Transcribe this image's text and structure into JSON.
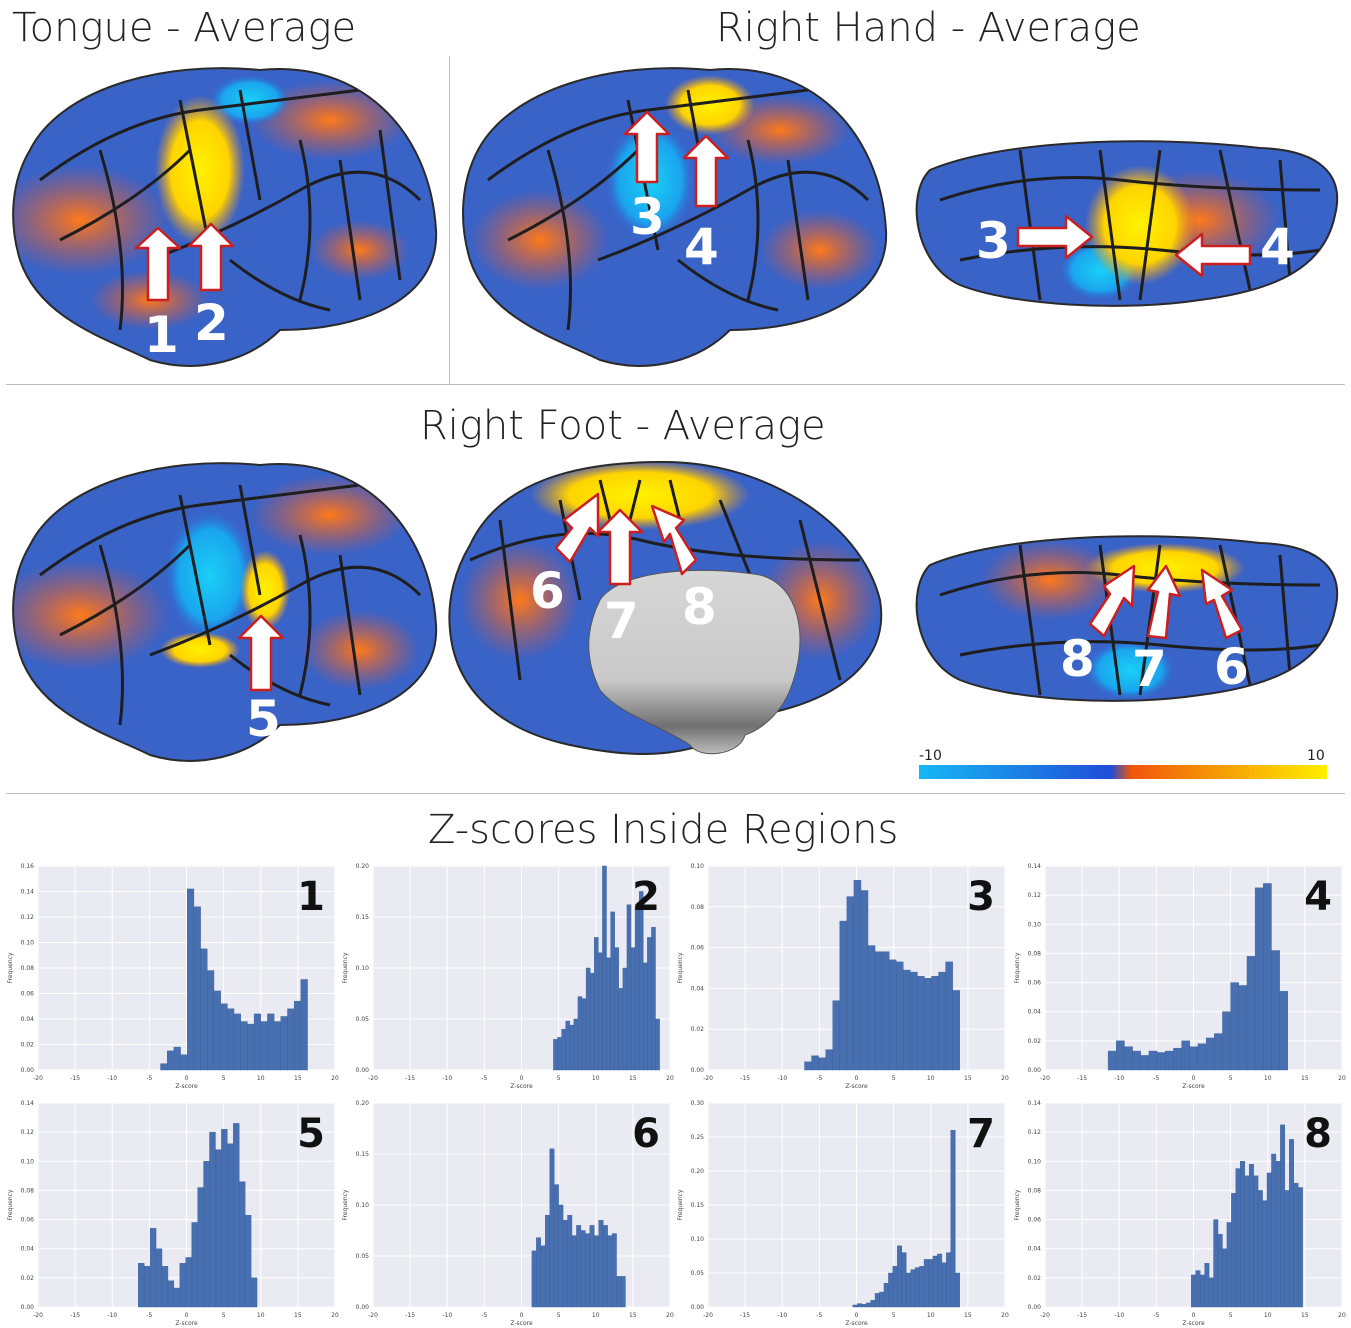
{
  "titles": {
    "tongue": "Tongue - Average",
    "right_hand": "Right Hand - Average",
    "right_foot": "Right Foot - Average",
    "zscores": "Z-scores Inside Regions"
  },
  "region_labels": [
    "1",
    "2",
    "3",
    "4",
    "5",
    "6",
    "7",
    "8"
  ],
  "colorbar": {
    "min_label": "-10",
    "max_label": "10",
    "stops": [
      "#16b8f5",
      "#1f4ed8",
      "#f0550a",
      "#ffef00"
    ]
  },
  "colors": {
    "bar": "#4870b0",
    "plot_bg": "#eaeaf2",
    "brain_blue": "#3a63c8",
    "brain_orange": "#e8672a",
    "activation_yellow": "#fff200",
    "arrow_fill": "#ffffff",
    "arrow_stroke": "#cc1f1f"
  },
  "chart_data": [
    {
      "type": "bar",
      "panel": "1",
      "xlabel": "Z-score",
      "ylabel": "Frequency",
      "xlim": [
        -20,
        20
      ],
      "ylim": [
        0,
        0.16
      ],
      "xticks": [
        -20,
        -15,
        -10,
        -5,
        0,
        5,
        10,
        15,
        20
      ],
      "yticks": [
        0.0,
        0.02,
        0.04,
        0.06,
        0.08,
        0.1,
        0.12,
        0.14,
        0.16
      ],
      "bin_start": -3.5,
      "bin_width": 0.9,
      "values": [
        0.005,
        0.015,
        0.018,
        0.012,
        0.142,
        0.128,
        0.095,
        0.078,
        0.062,
        0.052,
        0.048,
        0.044,
        0.038,
        0.036,
        0.044,
        0.038,
        0.044,
        0.038,
        0.042,
        0.048,
        0.054,
        0.071
      ]
    },
    {
      "type": "bar",
      "panel": "2",
      "xlabel": "Z-score",
      "ylabel": "Frequency",
      "xlim": [
        -20,
        20
      ],
      "ylim": [
        0,
        0.2
      ],
      "xticks": [
        -20,
        -15,
        -10,
        -5,
        0,
        5,
        10,
        15,
        20
      ],
      "yticks": [
        0.0,
        0.05,
        0.1,
        0.15,
        0.2
      ],
      "bin_start": 4.3,
      "bin_width": 0.55,
      "values": [
        0.03,
        0.032,
        0.04,
        0.048,
        0.044,
        0.05,
        0.072,
        0.07,
        0.1,
        0.095,
        0.13,
        0.115,
        0.2,
        0.11,
        0.155,
        0.12,
        0.08,
        0.1,
        0.162,
        0.12,
        0.16,
        0.175,
        0.105,
        0.13,
        0.14,
        0.05
      ]
    },
    {
      "type": "bar",
      "panel": "3",
      "xlabel": "Z-score",
      "ylabel": "Frequency",
      "xlim": [
        -20,
        20
      ],
      "ylim": [
        0,
        0.1
      ],
      "xticks": [
        -20,
        -15,
        -10,
        -5,
        0,
        5,
        10,
        15,
        20
      ],
      "yticks": [
        0.0,
        0.02,
        0.04,
        0.06,
        0.08,
        0.1
      ],
      "bin_start": -7,
      "bin_width": 0.95,
      "values": [
        0.004,
        0.007,
        0.006,
        0.01,
        0.034,
        0.073,
        0.085,
        0.093,
        0.088,
        0.061,
        0.058,
        0.058,
        0.054,
        0.053,
        0.049,
        0.048,
        0.046,
        0.045,
        0.046,
        0.048,
        0.053,
        0.039
      ]
    },
    {
      "type": "bar",
      "panel": "4",
      "xlabel": "Z-score",
      "ylabel": "Frequency",
      "xlim": [
        -20,
        20
      ],
      "ylim": [
        0,
        0.14
      ],
      "xticks": [
        -20,
        -15,
        -10,
        -5,
        0,
        5,
        10,
        15,
        20
      ],
      "yticks": [
        0.0,
        0.02,
        0.04,
        0.06,
        0.08,
        0.1,
        0.12,
        0.14
      ],
      "bin_start": -11.5,
      "bin_width": 1.1,
      "values": [
        0.013,
        0.02,
        0.016,
        0.013,
        0.01,
        0.013,
        0.012,
        0.013,
        0.015,
        0.02,
        0.016,
        0.018,
        0.022,
        0.025,
        0.04,
        0.06,
        0.058,
        0.078,
        0.125,
        0.128,
        0.082,
        0.054
      ]
    },
    {
      "type": "bar",
      "panel": "5",
      "xlabel": "Z-score",
      "ylabel": "Frequency",
      "xlim": [
        -20,
        20
      ],
      "ylim": [
        0,
        0.14
      ],
      "xticks": [
        -20,
        -15,
        -10,
        -5,
        0,
        5,
        10,
        15,
        20
      ],
      "yticks": [
        0.0,
        0.02,
        0.04,
        0.06,
        0.08,
        0.1,
        0.12,
        0.14
      ],
      "bin_start": -6.5,
      "bin_width": 0.8,
      "values": [
        0.03,
        0.028,
        0.054,
        0.04,
        0.028,
        0.018,
        0.013,
        0.03,
        0.034,
        0.058,
        0.082,
        0.1,
        0.12,
        0.108,
        0.122,
        0.112,
        0.126,
        0.086,
        0.063,
        0.02
      ]
    },
    {
      "type": "bar",
      "panel": "6",
      "xlabel": "Z-score",
      "ylabel": "Frequency",
      "xlim": [
        -20,
        20
      ],
      "ylim": [
        0,
        0.2
      ],
      "xticks": [
        -20,
        -15,
        -10,
        -5,
        0,
        5,
        10,
        15,
        20
      ],
      "yticks": [
        0.0,
        0.05,
        0.1,
        0.15,
        0.2
      ],
      "bin_start": 1.4,
      "bin_width": 0.6,
      "values": [
        0.055,
        0.068,
        0.06,
        0.09,
        0.155,
        0.12,
        0.1,
        0.085,
        0.09,
        0.07,
        0.08,
        0.075,
        0.072,
        0.08,
        0.07,
        0.085,
        0.08,
        0.07,
        0.072,
        0.03,
        0.03
      ]
    },
    {
      "type": "bar",
      "panel": "7",
      "xlabel": "Z-score",
      "ylabel": "Frequency",
      "xlim": [
        -20,
        20
      ],
      "ylim": [
        0,
        0.3
      ],
      "xticks": [
        -20,
        -15,
        -10,
        -5,
        0,
        5,
        10,
        15,
        20
      ],
      "yticks": [
        0.0,
        0.05,
        0.1,
        0.15,
        0.2,
        0.25,
        0.3
      ],
      "bin_start": -0.5,
      "bin_width": 0.6,
      "values": [
        0.003,
        0.005,
        0.004,
        0.006,
        0.01,
        0.02,
        0.022,
        0.035,
        0.05,
        0.06,
        0.09,
        0.08,
        0.05,
        0.055,
        0.058,
        0.06,
        0.07,
        0.07,
        0.075,
        0.078,
        0.065,
        0.08,
        0.26,
        0.05
      ]
    },
    {
      "type": "bar",
      "panel": "8",
      "xlabel": "Z-score",
      "ylabel": "Frequency",
      "xlim": [
        -20,
        20
      ],
      "ylim": [
        0,
        0.14
      ],
      "xticks": [
        -20,
        -15,
        -10,
        -5,
        0,
        5,
        10,
        15,
        20
      ],
      "yticks": [
        0.0,
        0.02,
        0.04,
        0.06,
        0.08,
        0.1,
        0.12,
        0.14
      ],
      "bin_start": -0.3,
      "bin_width": 0.6,
      "values": [
        0.022,
        0.025,
        0.022,
        0.03,
        0.02,
        0.06,
        0.05,
        0.04,
        0.058,
        0.078,
        0.095,
        0.1,
        0.09,
        0.098,
        0.09,
        0.08,
        0.073,
        0.092,
        0.105,
        0.1,
        0.125,
        0.08,
        0.115,
        0.085,
        0.082
      ]
    }
  ]
}
